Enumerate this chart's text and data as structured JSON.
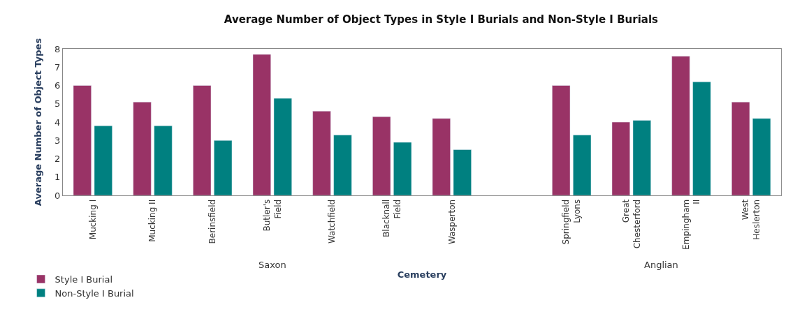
{
  "chart_data": {
    "type": "bar",
    "title": "Average Number of Object Types in Style I Burials and Non-Style I Burials",
    "xlabel": "Cemetery",
    "ylabel": "Average Number of Object Types",
    "categories": [
      "Mucking I",
      "Mucking II",
      "Berinsfield",
      "Butler's\nField",
      "Watchfield",
      "Blacknall\nField",
      "Wasperton",
      null,
      "Springfield\nLyons",
      "Great\nChesterford",
      "Empingham\nII",
      "West\nHeslerton"
    ],
    "series": [
      {
        "name": "Style I Burial",
        "color": "#993366",
        "values": [
          6.0,
          5.1,
          6.0,
          7.7,
          4.6,
          4.3,
          4.2,
          null,
          6.0,
          4.0,
          7.6,
          5.1
        ]
      },
      {
        "name": "Non-Style I Burial",
        "color": "#008080",
        "values": [
          3.8,
          3.8,
          3.0,
          5.3,
          3.3,
          2.9,
          2.5,
          null,
          3.3,
          4.1,
          6.2,
          4.2
        ]
      }
    ],
    "annotations": [
      "Saxon",
      "Anglian"
    ],
    "ylim": [
      0,
      8
    ],
    "yticks": [
      0,
      1,
      2,
      3,
      4,
      5,
      6,
      7,
      8
    ],
    "legend": "bottom left"
  }
}
